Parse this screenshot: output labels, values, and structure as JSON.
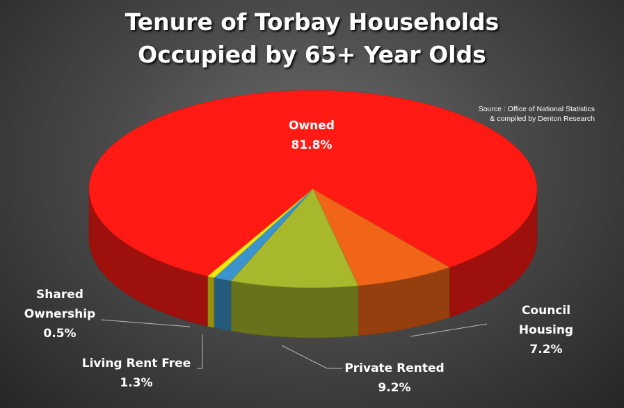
{
  "chart_data": {
    "type": "pie3d",
    "title": "Tenure of Torbay Households Occupied by 65+ Year Olds",
    "source": [
      "Source : Office of National Statistics",
      "& compiled by Denton Research"
    ],
    "categories": [
      "Owned",
      "Council Housing",
      "Private Rented",
      "Living Rent Free",
      "Shared Ownership"
    ],
    "values": [
      81.8,
      7.2,
      9.2,
      1.3,
      0.5
    ],
    "value_labels": [
      "81.8%",
      "7.2%",
      "9.2%",
      "1.3%",
      "0.5%"
    ],
    "colors": [
      "#ff1a14",
      "#f06518",
      "#a8b82c",
      "#3b95cc",
      "#f4ea10"
    ]
  }
}
